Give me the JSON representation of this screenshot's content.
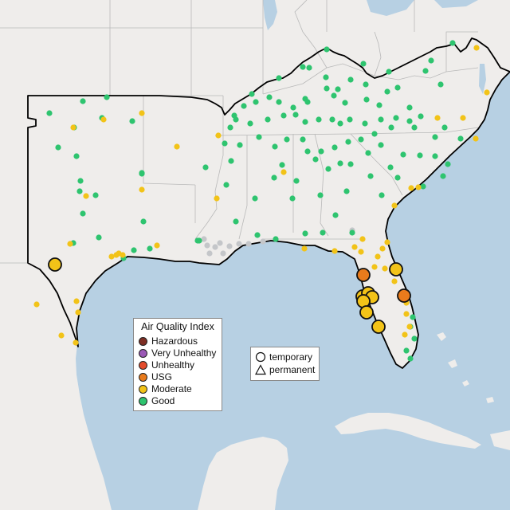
{
  "legend": {
    "title": "Air Quality Index",
    "categories": [
      {
        "label": "Hazardous",
        "color": "#7e2f24"
      },
      {
        "label": "Very Unhealthy",
        "color": "#9b59b6"
      },
      {
        "label": "Unhealthy",
        "color": "#e34b2c"
      },
      {
        "label": "USG",
        "color": "#e97b1c"
      },
      {
        "label": "Moderate",
        "color": "#f2c318"
      },
      {
        "label": "Good",
        "color": "#2ec46f"
      }
    ]
  },
  "site_legend": {
    "temporary_label": "temporary",
    "permanent_label": "permanent"
  },
  "colors": {
    "land": "#efedeb",
    "water": "#b7d0e3",
    "no_data_marker": "#c4c6c9",
    "region_outline": "#000000"
  },
  "map": {
    "region": "Southeastern United States",
    "basemap": "light gray land, light blue water"
  }
}
